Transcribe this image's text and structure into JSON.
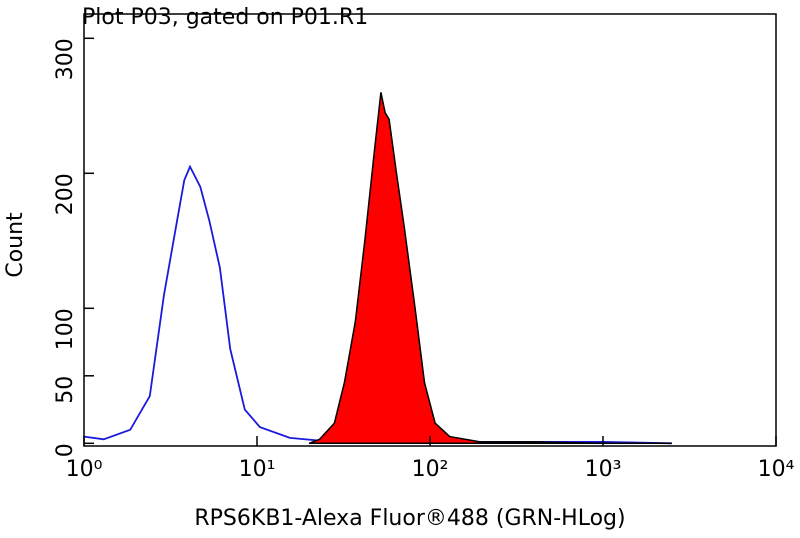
{
  "chart_data": {
    "type": "line",
    "title": "Plot P03, gated on P01.R1",
    "x_label": "RPS6KB1-Alexa Fluor®488 (GRN-HLog)",
    "y_label": "Count",
    "log_x": true,
    "xlim": [
      1,
      10000
    ],
    "xticks": [
      {
        "value": 1,
        "label": "10⁰"
      },
      {
        "value": 10,
        "label": "10¹"
      },
      {
        "value": 100,
        "label": "10²"
      },
      {
        "value": 1000,
        "label": "10³"
      },
      {
        "value": 10000,
        "label": "10⁴"
      }
    ],
    "ylim": [
      -2,
      318
    ],
    "yticks": [
      0,
      50,
      100,
      200,
      300
    ],
    "series": [
      {
        "color": "#1a1adc",
        "x": [
          1,
          1.3,
          1.85,
          2.4,
          2.9,
          3.4,
          3.8,
          4.1,
          4.7,
          5.3,
          6.1,
          7.0,
          8.5,
          10.4,
          15.5,
          23,
          40,
          100,
          300,
          1000,
          2500
        ],
        "values": [
          5,
          3,
          10,
          35,
          110,
          160,
          195,
          205,
          190,
          165,
          130,
          70,
          25,
          12,
          4,
          2,
          1,
          1,
          1,
          1,
          0
        ]
      },
      {
        "color": "#000000",
        "fill": "#ff0000",
        "x": [
          20,
          23,
          28,
          32,
          37,
          42,
          48,
          52,
          55,
          58,
          64,
          71,
          82,
          93,
          107,
          130,
          195,
          400,
          960,
          2500
        ],
        "values": [
          0,
          3,
          15,
          45,
          90,
          150,
          220,
          260,
          245,
          240,
          200,
          160,
          100,
          45,
          15,
          5,
          1,
          1,
          0,
          0
        ]
      }
    ]
  }
}
